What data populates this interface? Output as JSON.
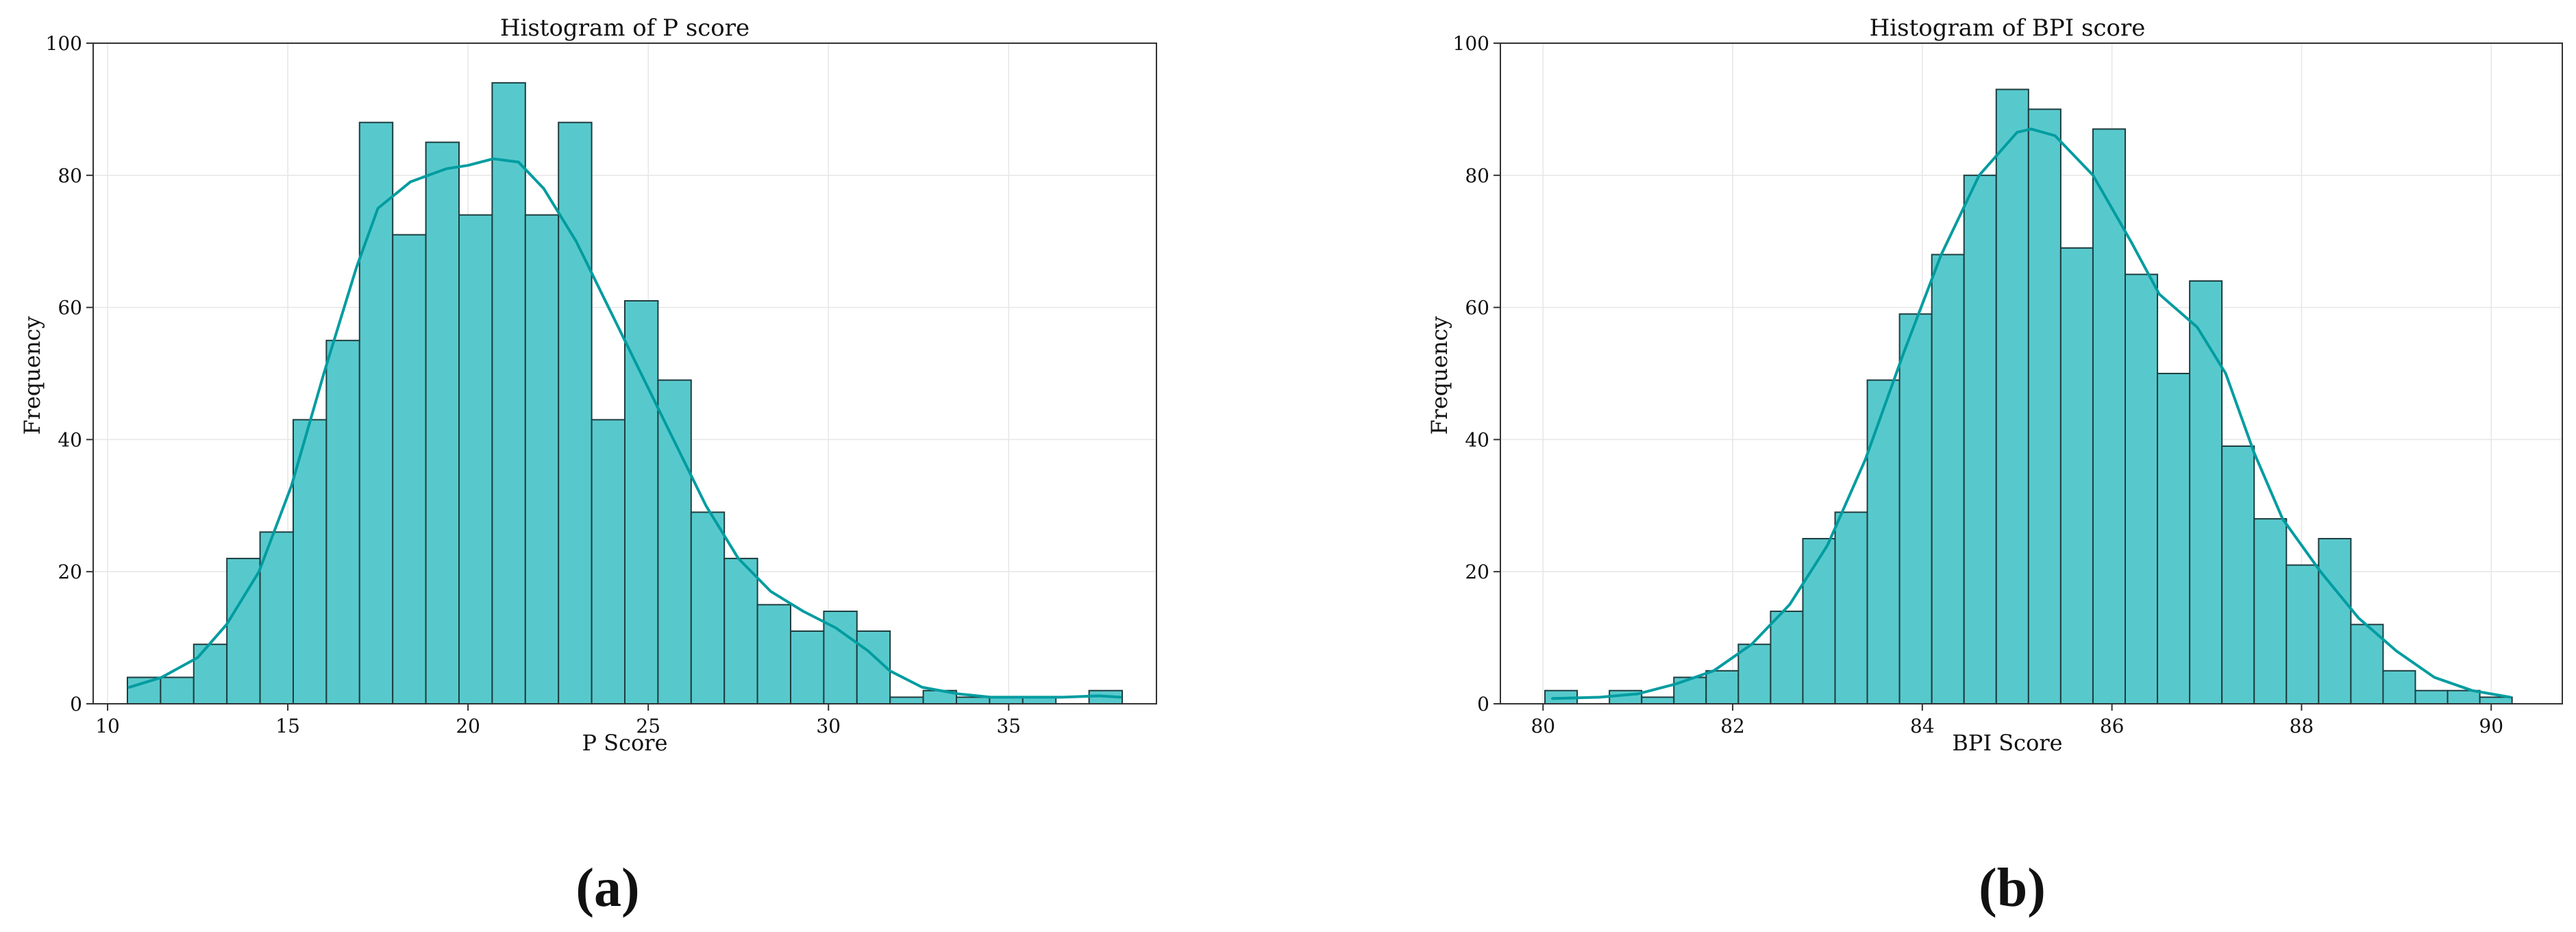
{
  "chart_data": [
    {
      "type": "bar",
      "caption": "(a)",
      "title": "Histogram of P score",
      "xlabel": "P Score",
      "ylabel": "Frequency",
      "xlim": [
        9.6,
        39.1
      ],
      "ylim": [
        0,
        100
      ],
      "xticks": [
        10,
        15,
        20,
        25,
        30,
        35
      ],
      "yticks": [
        0,
        20,
        40,
        60,
        80,
        100
      ],
      "grid": true,
      "bar_color": "#57c9cc",
      "edge_color": "#1f3d3f",
      "kde_color": "#009ca0",
      "bins": [
        {
          "x0": 10.55,
          "x1": 11.47,
          "count": 4
        },
        {
          "x0": 11.47,
          "x1": 12.39,
          "count": 4
        },
        {
          "x0": 12.39,
          "x1": 13.31,
          "count": 9
        },
        {
          "x0": 13.31,
          "x1": 14.23,
          "count": 22
        },
        {
          "x0": 14.23,
          "x1": 15.15,
          "count": 26
        },
        {
          "x0": 15.15,
          "x1": 16.07,
          "count": 43
        },
        {
          "x0": 16.07,
          "x1": 16.99,
          "count": 55
        },
        {
          "x0": 16.99,
          "x1": 17.91,
          "count": 88
        },
        {
          "x0": 17.91,
          "x1": 18.83,
          "count": 71
        },
        {
          "x0": 18.83,
          "x1": 19.75,
          "count": 85
        },
        {
          "x0": 19.75,
          "x1": 20.67,
          "count": 74
        },
        {
          "x0": 20.67,
          "x1": 21.59,
          "count": 94
        },
        {
          "x0": 21.59,
          "x1": 22.51,
          "count": 74
        },
        {
          "x0": 22.51,
          "x1": 23.43,
          "count": 88
        },
        {
          "x0": 23.43,
          "x1": 24.35,
          "count": 43
        },
        {
          "x0": 24.35,
          "x1": 25.27,
          "count": 61
        },
        {
          "x0": 25.27,
          "x1": 26.19,
          "count": 49
        },
        {
          "x0": 26.19,
          "x1": 27.11,
          "count": 29
        },
        {
          "x0": 27.11,
          "x1": 28.03,
          "count": 22
        },
        {
          "x0": 28.03,
          "x1": 28.95,
          "count": 15
        },
        {
          "x0": 28.95,
          "x1": 29.87,
          "count": 11
        },
        {
          "x0": 29.87,
          "x1": 30.79,
          "count": 14
        },
        {
          "x0": 30.79,
          "x1": 31.71,
          "count": 11
        },
        {
          "x0": 31.71,
          "x1": 32.63,
          "count": 1
        },
        {
          "x0": 32.63,
          "x1": 33.55,
          "count": 2
        },
        {
          "x0": 33.55,
          "x1": 34.47,
          "count": 1
        },
        {
          "x0": 34.47,
          "x1": 35.39,
          "count": 1
        },
        {
          "x0": 35.39,
          "x1": 36.31,
          "count": 1
        },
        {
          "x0": 36.31,
          "x1": 37.23,
          "count": 0
        },
        {
          "x0": 37.23,
          "x1": 38.15,
          "count": 2
        }
      ],
      "kde": [
        [
          10.6,
          2.5
        ],
        [
          11.5,
          4
        ],
        [
          12.5,
          7
        ],
        [
          13.3,
          12
        ],
        [
          14.2,
          20
        ],
        [
          15.1,
          33
        ],
        [
          16.0,
          50
        ],
        [
          16.9,
          66
        ],
        [
          17.5,
          75
        ],
        [
          18.4,
          79
        ],
        [
          19.4,
          81
        ],
        [
          20.0,
          81.5
        ],
        [
          20.7,
          82.5
        ],
        [
          21.4,
          82
        ],
        [
          22.1,
          78
        ],
        [
          23.0,
          70
        ],
        [
          23.9,
          60
        ],
        [
          24.8,
          50
        ],
        [
          25.7,
          40
        ],
        [
          26.6,
          30
        ],
        [
          27.5,
          22
        ],
        [
          28.4,
          17
        ],
        [
          29.3,
          14
        ],
        [
          30.2,
          11.5
        ],
        [
          31.1,
          8
        ],
        [
          31.7,
          5
        ],
        [
          32.6,
          2.5
        ],
        [
          33.6,
          1.5
        ],
        [
          34.5,
          1
        ],
        [
          35.5,
          1
        ],
        [
          36.5,
          1
        ],
        [
          37.5,
          1.2
        ],
        [
          38.1,
          1
        ]
      ]
    },
    {
      "type": "bar",
      "caption": "(b)",
      "title": "Histogram of BPI score",
      "xlabel": "BPI Score",
      "ylabel": "Frequency",
      "xlim": [
        79.55,
        90.75
      ],
      "ylim": [
        0,
        100
      ],
      "xticks": [
        80,
        82,
        84,
        86,
        88,
        90
      ],
      "yticks": [
        0,
        20,
        40,
        60,
        80,
        100
      ],
      "grid": true,
      "bar_color": "#57c9cc",
      "edge_color": "#1f3d3f",
      "kde_color": "#009ca0",
      "bins": [
        {
          "x0": 80.02,
          "x1": 80.36,
          "count": 2
        },
        {
          "x0": 80.36,
          "x1": 80.7,
          "count": 0
        },
        {
          "x0": 80.7,
          "x1": 81.04,
          "count": 2
        },
        {
          "x0": 81.04,
          "x1": 81.38,
          "count": 1
        },
        {
          "x0": 81.38,
          "x1": 81.72,
          "count": 4
        },
        {
          "x0": 81.72,
          "x1": 82.06,
          "count": 5
        },
        {
          "x0": 82.06,
          "x1": 82.4,
          "count": 9
        },
        {
          "x0": 82.4,
          "x1": 82.74,
          "count": 14
        },
        {
          "x0": 82.74,
          "x1": 83.08,
          "count": 25
        },
        {
          "x0": 83.08,
          "x1": 83.42,
          "count": 29
        },
        {
          "x0": 83.42,
          "x1": 83.76,
          "count": 49
        },
        {
          "x0": 83.76,
          "x1": 84.1,
          "count": 59
        },
        {
          "x0": 84.1,
          "x1": 84.44,
          "count": 68
        },
        {
          "x0": 84.44,
          "x1": 84.78,
          "count": 80
        },
        {
          "x0": 84.78,
          "x1": 85.12,
          "count": 93
        },
        {
          "x0": 85.12,
          "x1": 85.46,
          "count": 90
        },
        {
          "x0": 85.46,
          "x1": 85.8,
          "count": 69
        },
        {
          "x0": 85.8,
          "x1": 86.14,
          "count": 87
        },
        {
          "x0": 86.14,
          "x1": 86.48,
          "count": 65
        },
        {
          "x0": 86.48,
          "x1": 86.82,
          "count": 50
        },
        {
          "x0": 86.82,
          "x1": 87.16,
          "count": 64
        },
        {
          "x0": 87.16,
          "x1": 87.5,
          "count": 39
        },
        {
          "x0": 87.5,
          "x1": 87.84,
          "count": 28
        },
        {
          "x0": 87.84,
          "x1": 88.18,
          "count": 21
        },
        {
          "x0": 88.18,
          "x1": 88.52,
          "count": 25
        },
        {
          "x0": 88.52,
          "x1": 88.86,
          "count": 12
        },
        {
          "x0": 88.86,
          "x1": 89.2,
          "count": 5
        },
        {
          "x0": 89.2,
          "x1": 89.54,
          "count": 2
        },
        {
          "x0": 89.54,
          "x1": 89.88,
          "count": 2
        },
        {
          "x0": 89.88,
          "x1": 90.22,
          "count": 1
        }
      ],
      "kde": [
        [
          80.1,
          0.8
        ],
        [
          80.6,
          1
        ],
        [
          81.0,
          1.5
        ],
        [
          81.4,
          3
        ],
        [
          81.8,
          5
        ],
        [
          82.2,
          9
        ],
        [
          82.6,
          15
        ],
        [
          83.0,
          24
        ],
        [
          83.4,
          37
        ],
        [
          83.8,
          53
        ],
        [
          84.2,
          68
        ],
        [
          84.6,
          80
        ],
        [
          85.0,
          86.5
        ],
        [
          85.15,
          87
        ],
        [
          85.4,
          86
        ],
        [
          85.8,
          80
        ],
        [
          86.2,
          70
        ],
        [
          86.5,
          62
        ],
        [
          86.9,
          57
        ],
        [
          87.2,
          50
        ],
        [
          87.5,
          38
        ],
        [
          87.8,
          28
        ],
        [
          88.2,
          20
        ],
        [
          88.6,
          13
        ],
        [
          89.0,
          8
        ],
        [
          89.4,
          4
        ],
        [
          89.8,
          2
        ],
        [
          90.2,
          1
        ]
      ]
    }
  ]
}
